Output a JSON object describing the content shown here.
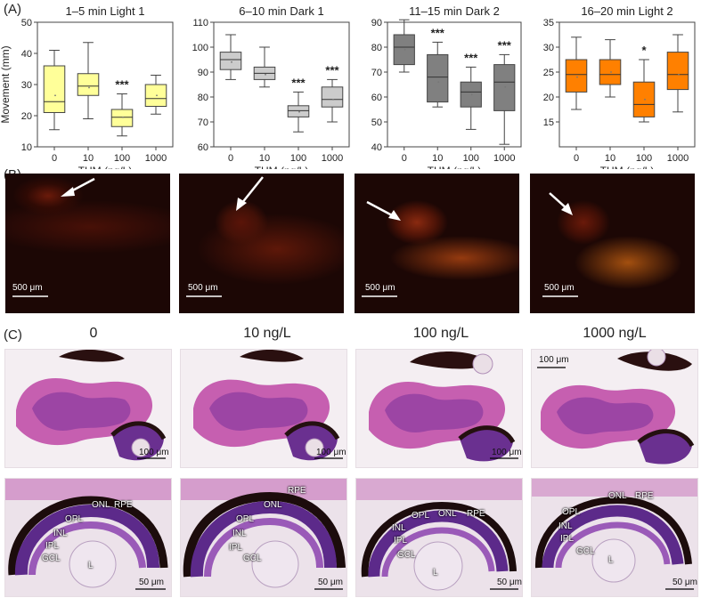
{
  "panel_labels": {
    "a": "(A)",
    "b": "(B)",
    "c": "(C)"
  },
  "colors": {
    "light1": "#ffff99",
    "dark1": "#cccccc",
    "dark2": "#808080",
    "light2": "#ff8000"
  },
  "chart_data": [
    {
      "type": "box",
      "title": "1–5 min Light 1",
      "xlabel": "THM (ng/L)",
      "ylabel": "Movement (mm)",
      "categories": [
        "0",
        "10",
        "100",
        "1000"
      ],
      "ylim": [
        10,
        50
      ],
      "yticks": [
        "10",
        "20",
        "30",
        "40",
        "50"
      ],
      "color": "#ffff99",
      "boxes": [
        {
          "min": 15.5,
          "q1": 21,
          "median": 24.5,
          "q3": 36,
          "max": 41,
          "mean": 26.5
        },
        {
          "min": 19,
          "q1": 26.5,
          "median": 29.5,
          "q3": 33.5,
          "max": 43.5,
          "mean": 29
        },
        {
          "min": 13.5,
          "q1": 16.5,
          "median": 19.5,
          "q3": 22,
          "max": 27,
          "mean": 19.5
        },
        {
          "min": 20.5,
          "q1": 23,
          "median": 25.5,
          "q3": 30,
          "max": 33,
          "mean": 26.5
        }
      ],
      "annotations": [
        "",
        "",
        "***",
        ""
      ]
    },
    {
      "type": "box",
      "title": "6–10 min Dark 1",
      "xlabel": "THM (ng/L)",
      "ylabel": "",
      "categories": [
        "0",
        "10",
        "100",
        "1000"
      ],
      "ylim": [
        60,
        110
      ],
      "yticks": [
        "60",
        "70",
        "80",
        "90",
        "100",
        "110"
      ],
      "color": "#cccccc",
      "boxes": [
        {
          "min": 87,
          "q1": 91,
          "median": 95,
          "q3": 98,
          "max": 105,
          "mean": 94
        },
        {
          "min": 84,
          "q1": 87,
          "median": 89.5,
          "q3": 92,
          "max": 100,
          "mean": 89
        },
        {
          "min": 66,
          "q1": 72,
          "median": 74.5,
          "q3": 76.5,
          "max": 82,
          "mean": 74
        },
        {
          "min": 70,
          "q1": 76,
          "median": 79,
          "q3": 84,
          "max": 87,
          "mean": 79
        }
      ],
      "annotations": [
        "",
        "",
        "***",
        "***"
      ]
    },
    {
      "type": "box",
      "title": "11–15 min Dark 2",
      "xlabel": "THM (ng/L)",
      "ylabel": "",
      "categories": [
        "0",
        "10",
        "100",
        "1000"
      ],
      "ylim": [
        40,
        90
      ],
      "yticks": [
        "40",
        "50",
        "60",
        "70",
        "80",
        "90"
      ],
      "color": "#808080",
      "boxes": [
        {
          "min": 70,
          "q1": 73,
          "median": 80,
          "q3": 85,
          "max": 91,
          "mean": 79
        },
        {
          "min": 56,
          "q1": 58,
          "median": 68,
          "q3": 77,
          "max": 82,
          "mean": 66
        },
        {
          "min": 47,
          "q1": 56,
          "median": 62,
          "q3": 66,
          "max": 72,
          "mean": 61
        },
        {
          "min": 41,
          "q1": 54.5,
          "median": 66,
          "q3": 73,
          "max": 77,
          "mean": 64
        }
      ],
      "annotations": [
        "",
        "***",
        "***",
        "***"
      ]
    },
    {
      "type": "box",
      "title": "16–20 min Light 2",
      "xlabel": "THM (ng/L)",
      "ylabel": "",
      "categories": [
        "0",
        "10",
        "100",
        "1000"
      ],
      "ylim": [
        10,
        35
      ],
      "yticks": [
        "15",
        "20",
        "25",
        "30",
        "35"
      ],
      "color": "#ff8000",
      "boxes": [
        {
          "min": 17.5,
          "q1": 21,
          "median": 24.5,
          "q3": 27.5,
          "max": 32,
          "mean": 24
        },
        {
          "min": 20,
          "q1": 22.5,
          "median": 24.5,
          "q3": 27.5,
          "max": 31.5,
          "mean": 25
        },
        {
          "min": 15,
          "q1": 16,
          "median": 18.5,
          "q3": 23,
          "max": 27.5,
          "mean": 19.5
        },
        {
          "min": 17,
          "q1": 21.5,
          "median": 24.5,
          "q3": 29,
          "max": 32.5,
          "mean": 24.5
        }
      ],
      "annotations": [
        "",
        "",
        "*",
        ""
      ]
    }
  ],
  "fluorescence": [
    {
      "scale": "500 μm"
    },
    {
      "scale": "500 μm"
    },
    {
      "scale": "500 μm"
    },
    {
      "scale": "500 μm"
    }
  ],
  "histology": {
    "columns": [
      "0",
      "10 ng/L",
      "100 ng/L",
      "1000 ng/L"
    ],
    "top_scales": [
      "100 μm",
      "100 μm",
      "100 μm",
      "100 μm"
    ],
    "bottom_scales": [
      "50 μm",
      "50 μm",
      "50 μm",
      "50 μm"
    ],
    "layers": [
      "ONL",
      "RPE",
      "OPL",
      "INL",
      "IPL",
      "GCL",
      "L"
    ]
  }
}
